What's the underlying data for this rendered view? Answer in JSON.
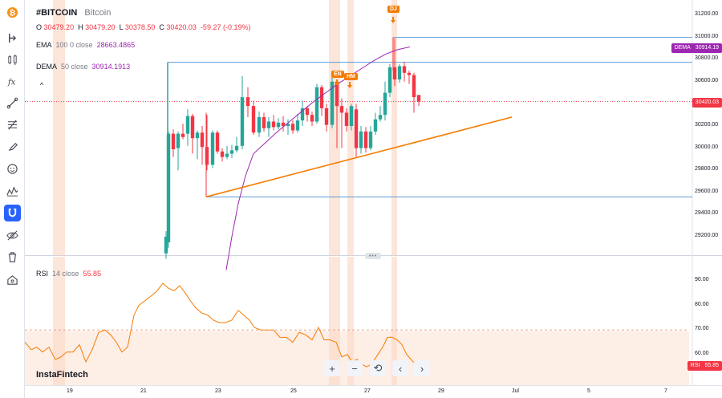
{
  "toolbar": {
    "tools": [
      "bitcoin-logo-icon",
      "cursor-icon",
      "candles-icon",
      "indicators-fx-icon",
      "trend-line-icon",
      "fibonacci-icon",
      "brush-icon",
      "smiley-icon",
      "patterns-icon",
      "magnet-icon",
      "eye-icon",
      "trash-icon",
      "home-icon"
    ]
  },
  "legend": {
    "symbol": "#BITCOIN",
    "description": "Bitcoin",
    "o_label": "O",
    "o_value": "30479.20",
    "h_label": "H",
    "h_value": "30479.20",
    "l_label": "L",
    "l_value": "30378.50",
    "c_label": "C",
    "c_value": "30420.03",
    "change": "-59.27 (-0.19%)",
    "ema_name": "EMA",
    "ema_params": "100 0 close",
    "ema_value": "28663.4865",
    "dema_name": "DEMA",
    "dema_params": "50 close",
    "dema_value": "30914.1913",
    "collapse": "^"
  },
  "rsi_legend": {
    "name": "RSI",
    "params": "14 close",
    "value": "55.85"
  },
  "price_axis": [
    "31200.00",
    "31000.00",
    "30800.00",
    "30600.00",
    "30400.00",
    "30200.00",
    "30000.00",
    "29800.00",
    "29600.00",
    "29400.00",
    "29200.00"
  ],
  "rsi_axis": [
    "90.00",
    "80.00",
    "70.00",
    "60.00"
  ],
  "time_axis": [
    "19",
    "21",
    "23",
    "25",
    "27",
    "29",
    "Jul",
    "5",
    "7"
  ],
  "tags": {
    "dema_label": "DEMA",
    "dema_value": "30914.19",
    "price_value": "30420.03",
    "rsi_label": "RSI",
    "rsi_value": "55.85"
  },
  "markers": {
    "dj": "DJ",
    "en": "EN",
    "hm": "HM"
  },
  "nav": {
    "zoom_in": "+",
    "zoom_out": "−",
    "reset": "⟲",
    "left": "‹",
    "right": "›"
  },
  "brand": "InstaFintech",
  "colors": {
    "up": "#26a69a",
    "down": "#f23645",
    "dema": "#9c27b0",
    "trend": "#f57c00",
    "level": "#5b9bd5",
    "event": "#f57c00"
  }
}
